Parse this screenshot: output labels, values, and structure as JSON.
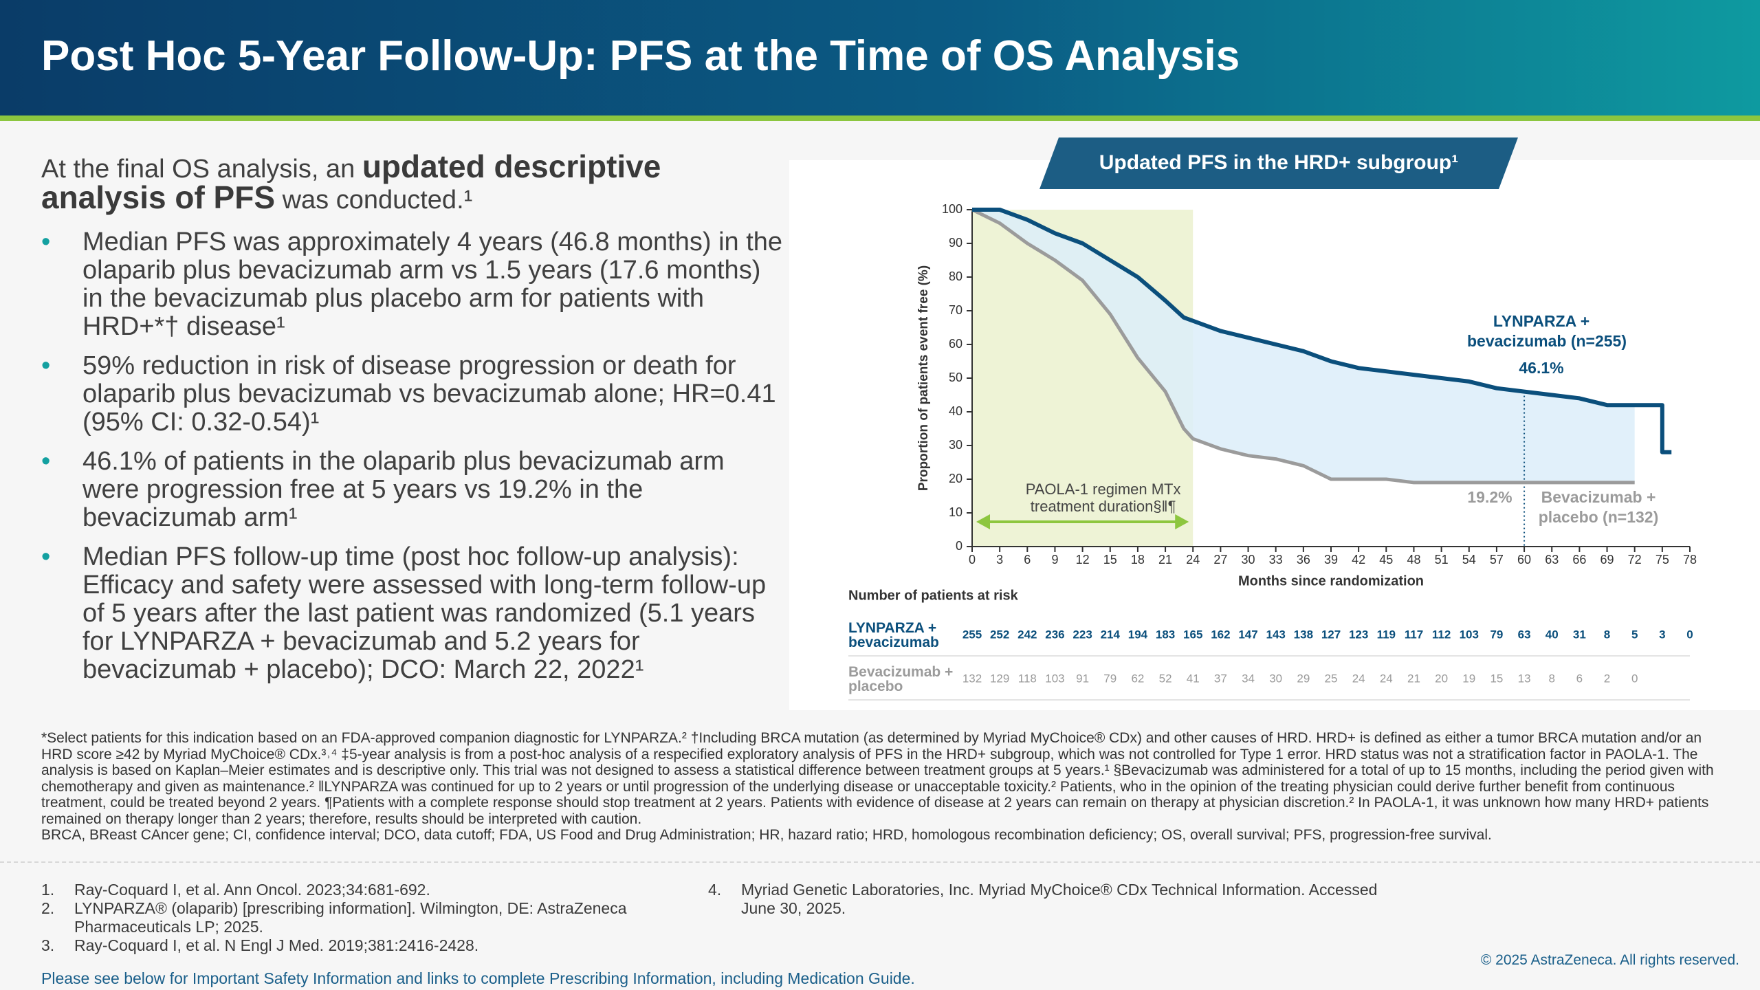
{
  "header": {
    "title": "Post Hoc 5-Year Follow-Up: PFS at the Time of OS Analysis"
  },
  "intro": [
    "At the final OS analysis, an ",
    "updated descriptive analysis of PFS",
    " was conducted.¹"
  ],
  "bullets": [
    "Median PFS was approximately 4 years (46.8 months) in the olaparib plus bevacizumab arm vs 1.5 years (17.6 months) in the bevacizumab plus placebo arm for patients with HRD+*† disease¹",
    "59% reduction in risk of disease progression or death for olaparib plus bevacizumab vs bevacizumab alone; HR=0.41 (95% CI: 0.32-0.54)¹",
    "46.1% of patients in the olaparib plus bevacizumab arm were progression free at 5 years vs 19.2% in the bevacizumab arm¹",
    "Median PFS follow-up time (post hoc follow-up analysis): Efficacy and safety were assessed with long-term follow-up of 5 years after the last patient was randomized (5.1 years for LYNPARZA + bevacizumab and 5.2 years for bevacizumab + placebo); DCO: March 22, 2022¹"
  ],
  "chart_data": {
    "type": "line",
    "title": "Updated PFS in the HRD+ subgroup¹",
    "x_label": "Months since randomization",
    "y_label": "Proportion of patients event free (%)",
    "xlim": [
      0,
      78
    ],
    "ylim": [
      0,
      100
    ],
    "xticks": [
      0,
      3,
      6,
      9,
      12,
      15,
      18,
      21,
      24,
      27,
      30,
      33,
      36,
      39,
      42,
      45,
      48,
      51,
      54,
      57,
      60,
      63,
      66,
      69,
      72,
      75,
      78
    ],
    "yticks": [
      0,
      10,
      20,
      30,
      40,
      50,
      60,
      70,
      80,
      90,
      100
    ],
    "series": [
      {
        "name": "LYNPARZA + bevacizumab",
        "color": "#0b4f7c",
        "x": [
          0,
          3,
          6,
          9,
          12,
          15,
          18,
          21,
          23,
          24,
          27,
          30,
          33,
          36,
          39,
          42,
          45,
          48,
          51,
          54,
          57,
          60,
          63,
          66,
          69,
          72,
          75,
          75,
          76
        ],
        "values": [
          100,
          100,
          97,
          93,
          90,
          85,
          80,
          73,
          68,
          67,
          64,
          62,
          60,
          58,
          55,
          53,
          52,
          51,
          50,
          49,
          47,
          46,
          45,
          44,
          42,
          42,
          42,
          28,
          28
        ],
        "at_risk": [
          255,
          252,
          242,
          236,
          223,
          214,
          194,
          183,
          165,
          162,
          147,
          143,
          138,
          127,
          123,
          119,
          117,
          112,
          103,
          79,
          63,
          40,
          31,
          8,
          5,
          3,
          0
        ]
      },
      {
        "name": "Bevacizumab + placebo",
        "color": "#9b9b9b",
        "x": [
          0,
          3,
          6,
          9,
          12,
          15,
          18,
          21,
          23,
          24,
          27,
          30,
          33,
          36,
          39,
          42,
          45,
          48,
          51,
          54,
          57,
          60,
          63,
          66,
          69,
          72
        ],
        "values": [
          100,
          96,
          90,
          85,
          79,
          69,
          56,
          46,
          35,
          32,
          29,
          27,
          26,
          24,
          20,
          20,
          20,
          19,
          19,
          19,
          19,
          19,
          19,
          19,
          19,
          19
        ],
        "at_risk": [
          132,
          129,
          118,
          103,
          91,
          79,
          62,
          52,
          41,
          37,
          34,
          30,
          29,
          25,
          24,
          24,
          21,
          20,
          19,
          15,
          13,
          8,
          6,
          2,
          0
        ]
      }
    ],
    "highlight": {
      "xlim": [
        0,
        24
      ],
      "label": [
        "PAOLA-1 regimen MTx",
        "treatment duration§ǁ¶"
      ],
      "color": "#eef3d6"
    },
    "reference_x": 60,
    "annotations": [
      "LYNPARZA +",
      "bevacizumab (n=255)",
      "46.1%",
      "19.2%",
      "Bevacizumab +",
      "placebo (n=132)"
    ],
    "risk_title": "Number of patients at risk"
  },
  "footnotes": [
    "*Select patients for this indication based on an FDA-approved companion diagnostic for LYNPARZA.² †Including BRCA mutation (as determined by Myriad MyChoice® CDx) and other causes of HRD. HRD+ is defined as either a tumor BRCA mutation and/or an HRD score ≥42 by Myriad MyChoice® CDx.³˒⁴ ‡5-year analysis is from a post-hoc analysis of a respecified exploratory analysis of PFS in the HRD+ subgroup, which was not controlled for Type 1 error. HRD status was not a stratification factor in PAOLA-1. The analysis is based on Kaplan–Meier estimates and is descriptive only. This trial was not designed to assess a statistical difference between treatment groups at 5 years.¹ §Bevacizumab was administered for a total of up to 15 months, including the period given with chemotherapy and given as maintenance.² ǁLYNPARZA was continued for up to 2 years or until progression of the underlying disease or unacceptable toxicity.² Patients, who in the opinion of the treating physician could derive further benefit from continuous treatment, could be treated beyond 2 years. ¶Patients with a complete response should stop treatment at 2 years. Patients with evidence of disease at 2 years can remain on therapy at physician discretion.² In PAOLA-1, it was unknown how many HRD+ patients remained on therapy longer than 2 years; therefore, results should be interpreted with caution.",
    "BRCA, BReast CAncer gene; CI, confidence interval; DCO, data cutoff; FDA, US Food and Drug Administration; HR, hazard ratio; HRD, homologous recombination deficiency; OS, overall survival; PFS, progression-free survival."
  ],
  "references": [
    {
      "num": "1.",
      "text": "Ray-Coquard I, et al. Ann Oncol. 2023;34:681-692."
    },
    {
      "num": "2.",
      "text": "LYNPARZA® (olaparib) [prescribing information]. Wilmington, DE: AstraZeneca Pharmaceuticals LP; 2025."
    },
    {
      "num": "3.",
      "text": "Ray-Coquard I, et al. N Engl J Med. 2019;381:2416-2428."
    },
    {
      "num": "4.",
      "text": "Myriad Genetic Laboratories, Inc. Myriad MyChoice® CDx Technical Information. Accessed June 30, 2025."
    }
  ],
  "footer": {
    "link": "Please see below for Important Safety Information and links to complete Prescribing Information, including Medication Guide.",
    "copyright": "© 2025 AstraZeneca. All rights reserved."
  }
}
